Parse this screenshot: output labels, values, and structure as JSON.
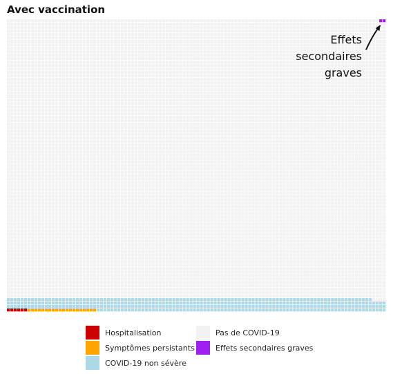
{
  "title": "Avec vaccination",
  "annotation": {
    "lines": [
      "Effets",
      "secondaires",
      "graves"
    ]
  },
  "colors": {
    "hospitalisation": "#cc0000",
    "symptomes": "#ffa500",
    "non_severe": "#add8e6",
    "pas_covid": "#f2f2f2",
    "effets": "#a020f0"
  },
  "legend": {
    "items": [
      {
        "label": "Hospitalisation",
        "color": "#cc0000"
      },
      {
        "label": "Pas de COVID-19",
        "color": "#f2f2f2"
      },
      {
        "label": "Symptômes persistants",
        "color": "#ffa500"
      },
      {
        "label": "Effets secondaires graves",
        "color": "#a020f0"
      },
      {
        "label": "COVID-19 non sévère",
        "color": "#add8e6"
      }
    ]
  },
  "chart_data": {
    "type": "waffle",
    "title": "Avec vaccination",
    "grid": {
      "columns": 110,
      "rows": 85
    },
    "categories": [
      "Hospitalisation",
      "Symptômes persistants",
      "COVID-19 non sévère",
      "Pas de COVID-19",
      "Effets secondaires graves"
    ],
    "values": [
      6,
      20,
      410,
      8912,
      2
    ],
    "fill_order": "bottom-left to right, row by row upward; Effets secondaires graves at top-right"
  }
}
